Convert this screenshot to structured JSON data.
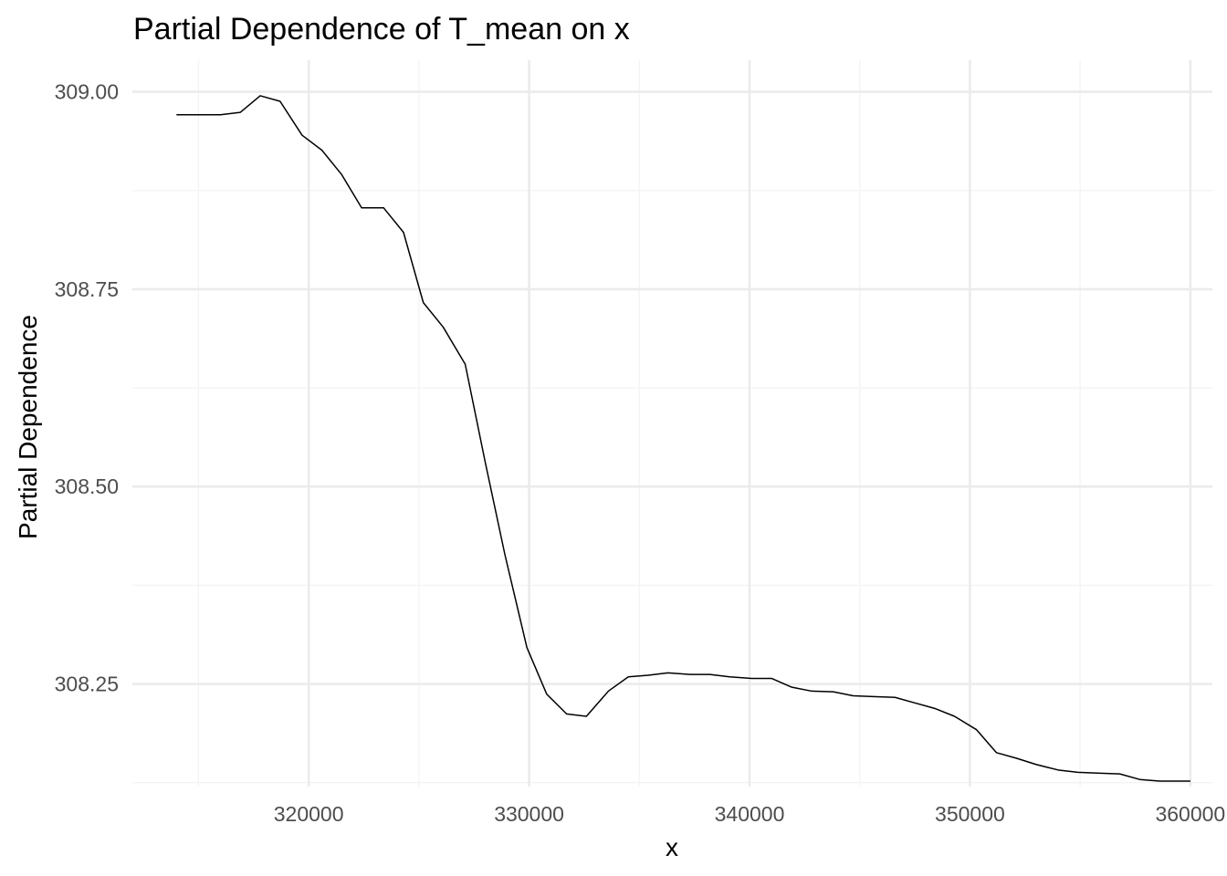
{
  "chart_data": {
    "type": "line",
    "title": "Partial Dependence of T_mean on x",
    "xlabel": "x",
    "ylabel": "Partial Dependence",
    "xlim": [
      312000,
      361000
    ],
    "ylim": [
      308.12,
      309.04
    ],
    "x_ticks": [
      320000,
      330000,
      340000,
      350000,
      360000
    ],
    "x_tick_labels": [
      "320000",
      "330000",
      "340000",
      "350000",
      "360000"
    ],
    "y_ticks": [
      308.25,
      308.5,
      308.75,
      309.0
    ],
    "y_tick_labels": [
      "308.25",
      "308.50",
      "308.75",
      "309.00"
    ],
    "grid": true,
    "legend": "none",
    "line_color": "#000000",
    "series": [
      {
        "x": [
          314000,
          315000,
          316000,
          316900,
          317800,
          318700,
          319700,
          320600,
          321500,
          322400,
          323400,
          324300,
          325200,
          326100,
          327100,
          328000,
          328900,
          329900,
          330800,
          331700,
          332600,
          333600,
          334500,
          335400,
          336300,
          337300,
          338200,
          339100,
          340100,
          341000,
          341900,
          342800,
          343800,
          344700,
          345600,
          346600,
          347500,
          348400,
          349300,
          350300,
          351200,
          352100,
          353000,
          354000,
          354900,
          355800,
          356800,
          357700,
          358600,
          359500,
          360000
        ],
        "y": [
          308.971,
          308.971,
          308.971,
          308.974,
          308.995,
          308.988,
          308.945,
          308.926,
          308.895,
          308.853,
          308.853,
          308.822,
          308.733,
          308.702,
          308.655,
          308.532,
          308.414,
          308.296,
          308.237,
          308.212,
          308.209,
          308.241,
          308.259,
          308.261,
          308.264,
          308.262,
          308.262,
          308.259,
          308.257,
          308.257,
          308.246,
          308.241,
          308.24,
          308.235,
          308.234,
          308.233,
          308.226,
          308.219,
          308.209,
          308.192,
          308.163,
          308.156,
          308.148,
          308.141,
          308.138,
          308.137,
          308.136,
          308.129,
          308.127,
          308.127,
          308.127
        ]
      }
    ]
  }
}
